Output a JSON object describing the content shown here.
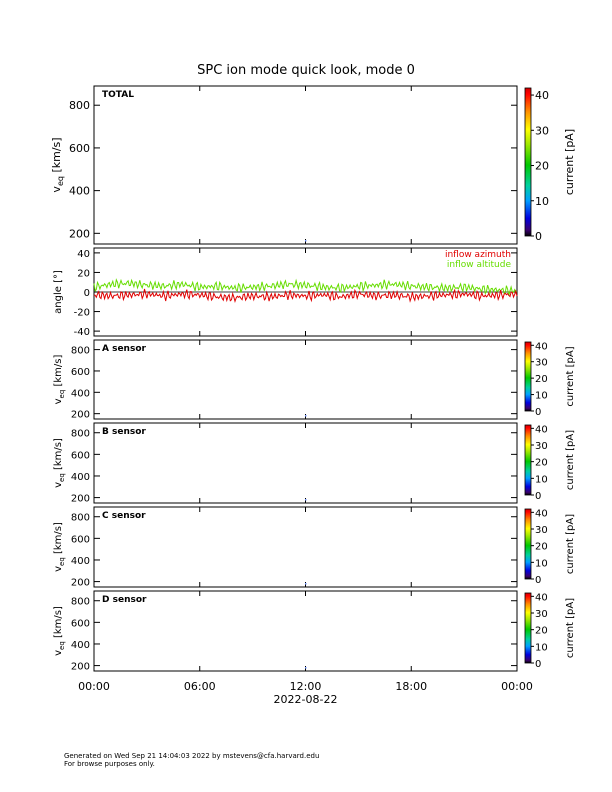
{
  "title": "SPC ion mode quick look, mode 0",
  "footer": {
    "line1": "Generated on Wed Sep 21 14:04:03 2022 by mstevens@cfa.harvard.edu",
    "line2": "For browse purposes only."
  },
  "colors": {
    "azimuth": "#e00000",
    "altitude": "#66dd00",
    "axis": "#000000"
  },
  "chart_data": [
    {
      "type": "heatmap",
      "panel": "TOTAL",
      "ylabel": "v_eq [km/s]",
      "y_ticks": [
        200,
        400,
        600,
        800
      ],
      "ylim": [
        150,
        890
      ],
      "colorbar": {
        "label": "current [pA]",
        "ticks": [
          0,
          10,
          20,
          30,
          40
        ],
        "range": [
          0,
          42
        ]
      }
    },
    {
      "type": "line",
      "ylabel": "angle [°]",
      "y_ticks": [
        -40,
        -20,
        0,
        20,
        40
      ],
      "ylim": [
        -45,
        45
      ],
      "xlim_hours": [
        0,
        24
      ],
      "legend": {
        "placement": "top-right"
      },
      "series": [
        {
          "name": "inflow azimuth",
          "x_hours": [
            0,
            1,
            2,
            3,
            4,
            5,
            6,
            7,
            8,
            9,
            10,
            11,
            12,
            13,
            14,
            15,
            16,
            17,
            18,
            19,
            20,
            21,
            22,
            23,
            24
          ],
          "values": [
            -3,
            -4,
            -3,
            -2,
            -4,
            -2,
            -3,
            -5,
            -6,
            -4,
            -5,
            -3,
            -4,
            -3,
            -5,
            -2,
            -4,
            -3,
            -5,
            -4,
            -3,
            -2,
            -4,
            -3,
            -2
          ]
        },
        {
          "name": "inflow altitude",
          "x_hours": [
            0,
            1,
            2,
            3,
            4,
            5,
            6,
            7,
            8,
            9,
            10,
            11,
            12,
            13,
            14,
            15,
            16,
            17,
            18,
            19,
            20,
            21,
            22,
            23,
            24
          ],
          "values": [
            5,
            8,
            9,
            7,
            6,
            8,
            5,
            6,
            4,
            5,
            6,
            8,
            7,
            5,
            4,
            6,
            7,
            8,
            6,
            5,
            4,
            5,
            3,
            2,
            1
          ]
        }
      ]
    },
    {
      "type": "heatmap",
      "panel": "A sensor",
      "ylabel": "v_eq [km/s]",
      "y_ticks": [
        200,
        400,
        600,
        800
      ],
      "ylim": [
        150,
        890
      ],
      "colorbar": {
        "label": "current [pA]",
        "ticks": [
          0,
          10,
          20,
          30,
          40
        ],
        "range": [
          0,
          42
        ]
      }
    },
    {
      "type": "heatmap",
      "panel": "B sensor",
      "ylabel": "v_eq [km/s]",
      "y_ticks": [
        200,
        400,
        600,
        800
      ],
      "ylim": [
        150,
        890
      ],
      "colorbar": {
        "label": "current [pA]",
        "ticks": [
          0,
          10,
          20,
          30,
          40
        ],
        "range": [
          0,
          42
        ]
      }
    },
    {
      "type": "heatmap",
      "panel": "C sensor",
      "ylabel": "v_eq [km/s]",
      "y_ticks": [
        200,
        400,
        600,
        800
      ],
      "ylim": [
        150,
        890
      ],
      "colorbar": {
        "label": "current [pA]",
        "ticks": [
          0,
          10,
          20,
          30,
          40
        ],
        "range": [
          0,
          42
        ]
      }
    },
    {
      "type": "heatmap",
      "panel": "D sensor",
      "ylabel": "v_eq [km/s]",
      "y_ticks": [
        200,
        400,
        600,
        800
      ],
      "ylim": [
        150,
        890
      ],
      "colorbar": {
        "label": "current [pA]",
        "ticks": [
          0,
          10,
          20,
          30,
          40
        ],
        "range": [
          0,
          42
        ]
      }
    }
  ],
  "x_axis": {
    "tick_labels": [
      "00:00",
      "06:00",
      "12:00",
      "18:00",
      "00:00"
    ],
    "date_label": "2022-08-22"
  }
}
